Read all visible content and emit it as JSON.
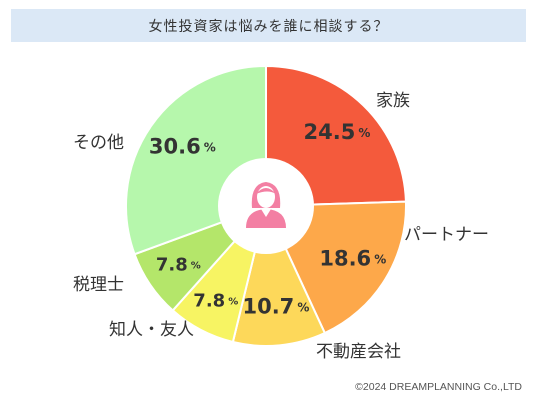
{
  "title": "女性投資家は悩みを誰に相談する？",
  "chart_data": {
    "type": "pie",
    "unit": "%",
    "categories": [
      "家族",
      "パートナー",
      "不動産会社",
      "知人・友人",
      "税理士",
      "その他"
    ],
    "values": [
      24.5,
      18.6,
      10.7,
      7.8,
      7.8,
      30.6
    ],
    "value_labels": [
      "24.5",
      "18.6",
      "10.7",
      "7.8",
      "7.8",
      "30.6"
    ],
    "colors": [
      "#f45a3c",
      "#fda84a",
      "#fdd85a",
      "#f7f463",
      "#b4e66a",
      "#b6f7ac"
    ]
  },
  "center_icon": "woman-icon",
  "copyright": "©2024 DREAMPLANNING Co.,LTD"
}
